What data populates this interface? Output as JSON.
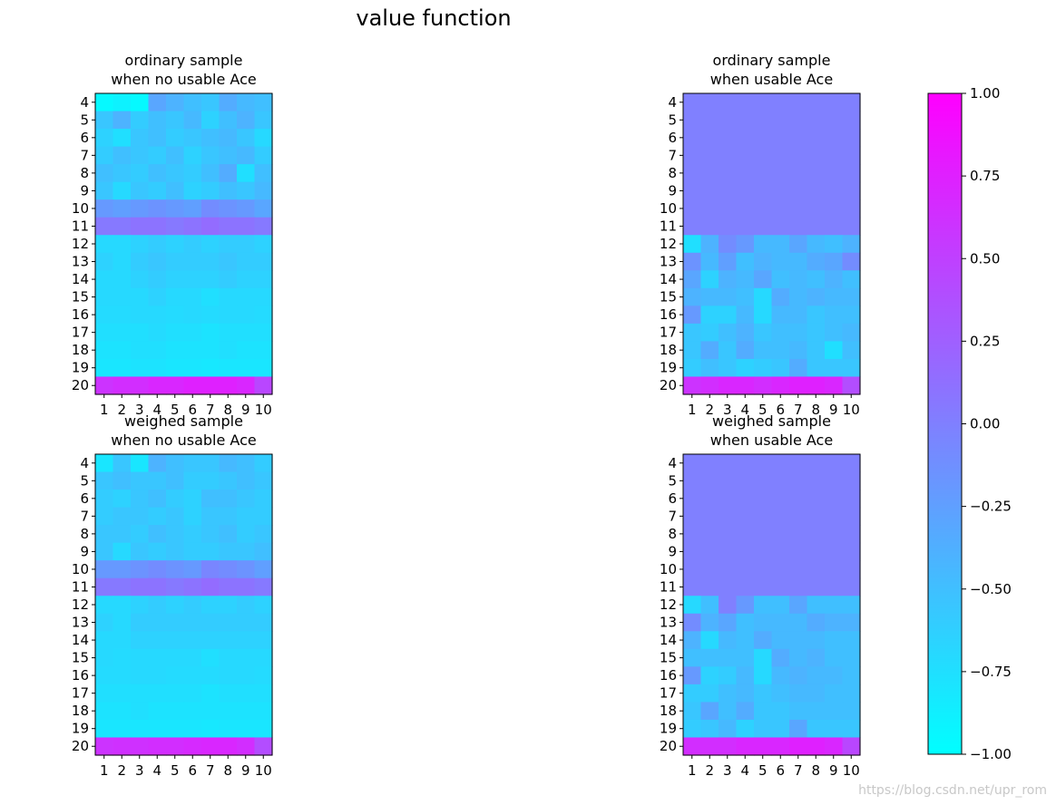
{
  "figure": {
    "suptitle": "value function",
    "watermark": "https://blog.csdn.net/upr_rom"
  },
  "chart_data": [
    {
      "type": "heatmap",
      "title": "ordinary sample\nwhen no usable Ace",
      "x": [
        1,
        2,
        3,
        4,
        5,
        6,
        7,
        8,
        9,
        10
      ],
      "y": [
        4,
        5,
        6,
        7,
        8,
        9,
        10,
        11,
        12,
        13,
        14,
        15,
        16,
        17,
        18,
        19,
        20
      ],
      "xlabel": "",
      "ylabel": "",
      "colormap": "cool",
      "vmin": -1,
      "vmax": 1,
      "z": [
        [
          -0.95,
          -0.9,
          -0.95,
          -0.3,
          -0.4,
          -0.5,
          -0.55,
          -0.35,
          -0.45,
          -0.5
        ],
        [
          -0.55,
          -0.4,
          -0.6,
          -0.5,
          -0.55,
          -0.45,
          -0.65,
          -0.5,
          -0.4,
          -0.55
        ],
        [
          -0.65,
          -0.75,
          -0.55,
          -0.5,
          -0.6,
          -0.55,
          -0.5,
          -0.45,
          -0.55,
          -0.7
        ],
        [
          -0.6,
          -0.5,
          -0.55,
          -0.6,
          -0.5,
          -0.65,
          -0.55,
          -0.5,
          -0.45,
          -0.6
        ],
        [
          -0.5,
          -0.55,
          -0.6,
          -0.5,
          -0.55,
          -0.6,
          -0.5,
          -0.35,
          -0.75,
          -0.5
        ],
        [
          -0.55,
          -0.7,
          -0.55,
          -0.6,
          -0.5,
          -0.65,
          -0.6,
          -0.5,
          -0.55,
          -0.45
        ],
        [
          -0.2,
          -0.25,
          -0.2,
          -0.15,
          -0.2,
          -0.25,
          -0.1,
          -0.15,
          -0.2,
          -0.3
        ],
        [
          0.05,
          0.05,
          0.1,
          0.1,
          0.05,
          0.1,
          0.15,
          0.1,
          0.1,
          0.05
        ],
        [
          -0.7,
          -0.7,
          -0.65,
          -0.6,
          -0.65,
          -0.6,
          -0.65,
          -0.6,
          -0.6,
          -0.65
        ],
        [
          -0.65,
          -0.7,
          -0.6,
          -0.55,
          -0.6,
          -0.6,
          -0.6,
          -0.55,
          -0.6,
          -0.6
        ],
        [
          -0.7,
          -0.7,
          -0.65,
          -0.6,
          -0.65,
          -0.65,
          -0.65,
          -0.6,
          -0.65,
          -0.65
        ],
        [
          -0.7,
          -0.7,
          -0.7,
          -0.65,
          -0.7,
          -0.7,
          -0.75,
          -0.7,
          -0.7,
          -0.7
        ],
        [
          -0.72,
          -0.72,
          -0.7,
          -0.7,
          -0.72,
          -0.7,
          -0.72,
          -0.7,
          -0.7,
          -0.72
        ],
        [
          -0.75,
          -0.75,
          -0.75,
          -0.72,
          -0.75,
          -0.75,
          -0.78,
          -0.75,
          -0.75,
          -0.75
        ],
        [
          -0.78,
          -0.78,
          -0.75,
          -0.75,
          -0.78,
          -0.78,
          -0.78,
          -0.75,
          -0.78,
          -0.78
        ],
        [
          -0.8,
          -0.8,
          -0.78,
          -0.78,
          -0.8,
          -0.8,
          -0.82,
          -0.8,
          -0.8,
          -0.8
        ],
        [
          0.6,
          0.65,
          0.65,
          0.7,
          0.7,
          0.75,
          0.75,
          0.75,
          0.7,
          0.45
        ]
      ]
    },
    {
      "type": "heatmap",
      "title": "ordinary sample\nwhen usable Ace",
      "x": [
        1,
        2,
        3,
        4,
        5,
        6,
        7,
        8,
        9,
        10
      ],
      "y": [
        4,
        5,
        6,
        7,
        8,
        9,
        10,
        11,
        12,
        13,
        14,
        15,
        16,
        17,
        18,
        19,
        20
      ],
      "xlabel": "",
      "ylabel": "",
      "colormap": "cool",
      "vmin": -1,
      "vmax": 1,
      "z": [
        [
          0,
          0,
          0,
          0,
          0,
          0,
          0,
          0,
          0,
          0
        ],
        [
          0,
          0,
          0,
          0,
          0,
          0,
          0,
          0,
          0,
          0
        ],
        [
          0,
          0,
          0,
          0,
          0,
          0,
          0,
          0,
          0,
          0
        ],
        [
          0,
          0,
          0,
          0,
          0,
          0,
          0,
          0,
          0,
          0
        ],
        [
          0,
          0,
          0,
          0,
          0,
          0,
          0,
          0,
          0,
          0
        ],
        [
          0,
          0,
          0,
          0,
          0,
          0,
          0,
          0,
          0,
          0
        ],
        [
          0,
          0,
          0,
          0,
          0,
          0,
          0,
          0,
          0,
          0
        ],
        [
          0,
          0,
          0,
          0,
          0,
          0,
          0,
          0,
          0,
          0
        ],
        [
          -0.75,
          -0.4,
          -0.1,
          -0.2,
          -0.45,
          -0.45,
          -0.3,
          -0.45,
          -0.5,
          -0.4
        ],
        [
          -0.15,
          -0.45,
          -0.25,
          -0.5,
          -0.4,
          -0.45,
          -0.45,
          -0.35,
          -0.3,
          -0.1
        ],
        [
          -0.3,
          -0.65,
          -0.4,
          -0.45,
          -0.3,
          -0.5,
          -0.45,
          -0.5,
          -0.4,
          -0.5
        ],
        [
          -0.4,
          -0.45,
          -0.45,
          -0.5,
          -0.7,
          -0.35,
          -0.45,
          -0.4,
          -0.45,
          -0.45
        ],
        [
          -0.2,
          -0.65,
          -0.65,
          -0.45,
          -0.7,
          -0.45,
          -0.45,
          -0.55,
          -0.5,
          -0.5
        ],
        [
          -0.55,
          -0.6,
          -0.5,
          -0.4,
          -0.55,
          -0.5,
          -0.5,
          -0.55,
          -0.5,
          -0.45
        ],
        [
          -0.55,
          -0.35,
          -0.55,
          -0.35,
          -0.5,
          -0.5,
          -0.45,
          -0.55,
          -0.75,
          -0.5
        ],
        [
          -0.6,
          -0.5,
          -0.55,
          -0.65,
          -0.6,
          -0.55,
          -0.35,
          -0.55,
          -0.55,
          -0.55
        ],
        [
          0.6,
          0.65,
          0.7,
          0.7,
          0.65,
          0.7,
          0.75,
          0.75,
          0.7,
          0.4
        ]
      ]
    },
    {
      "type": "heatmap",
      "title": "weighed sample\nwhen no usable Ace",
      "x": [
        1,
        2,
        3,
        4,
        5,
        6,
        7,
        8,
        9,
        10
      ],
      "y": [
        4,
        5,
        6,
        7,
        8,
        9,
        10,
        11,
        12,
        13,
        14,
        15,
        16,
        17,
        18,
        19,
        20
      ],
      "xlabel": "",
      "ylabel": "",
      "colormap": "cool",
      "vmin": -1,
      "vmax": 1,
      "z": [
        [
          -0.8,
          -0.55,
          -0.8,
          -0.4,
          -0.5,
          -0.55,
          -0.55,
          -0.45,
          -0.5,
          -0.6
        ],
        [
          -0.55,
          -0.5,
          -0.55,
          -0.55,
          -0.5,
          -0.6,
          -0.6,
          -0.55,
          -0.5,
          -0.55
        ],
        [
          -0.6,
          -0.65,
          -0.55,
          -0.5,
          -0.6,
          -0.65,
          -0.5,
          -0.5,
          -0.55,
          -0.6
        ],
        [
          -0.6,
          -0.55,
          -0.55,
          -0.6,
          -0.55,
          -0.65,
          -0.55,
          -0.55,
          -0.6,
          -0.6
        ],
        [
          -0.55,
          -0.55,
          -0.6,
          -0.5,
          -0.55,
          -0.6,
          -0.55,
          -0.5,
          -0.6,
          -0.55
        ],
        [
          -0.55,
          -0.7,
          -0.55,
          -0.6,
          -0.55,
          -0.6,
          -0.6,
          -0.55,
          -0.55,
          -0.5
        ],
        [
          -0.2,
          -0.2,
          -0.15,
          -0.1,
          -0.15,
          -0.2,
          -0.05,
          -0.1,
          -0.15,
          -0.25
        ],
        [
          0.05,
          0.05,
          0.1,
          0.1,
          0.05,
          0.1,
          0.15,
          0.1,
          0.1,
          0.05
        ],
        [
          -0.7,
          -0.7,
          -0.65,
          -0.6,
          -0.65,
          -0.6,
          -0.65,
          -0.65,
          -0.6,
          -0.65
        ],
        [
          -0.65,
          -0.7,
          -0.6,
          -0.6,
          -0.6,
          -0.6,
          -0.6,
          -0.6,
          -0.6,
          -0.6
        ],
        [
          -0.7,
          -0.7,
          -0.65,
          -0.65,
          -0.65,
          -0.65,
          -0.65,
          -0.65,
          -0.65,
          -0.65
        ],
        [
          -0.7,
          -0.72,
          -0.7,
          -0.7,
          -0.7,
          -0.7,
          -0.75,
          -0.7,
          -0.7,
          -0.7
        ],
        [
          -0.72,
          -0.72,
          -0.7,
          -0.7,
          -0.72,
          -0.72,
          -0.72,
          -0.7,
          -0.7,
          -0.72
        ],
        [
          -0.75,
          -0.75,
          -0.75,
          -0.75,
          -0.75,
          -0.75,
          -0.78,
          -0.75,
          -0.75,
          -0.75
        ],
        [
          -0.78,
          -0.78,
          -0.75,
          -0.78,
          -0.78,
          -0.78,
          -0.78,
          -0.78,
          -0.78,
          -0.78
        ],
        [
          -0.8,
          -0.8,
          -0.8,
          -0.8,
          -0.8,
          -0.8,
          -0.82,
          -0.8,
          -0.8,
          -0.8
        ],
        [
          0.6,
          0.62,
          0.62,
          0.65,
          0.65,
          0.68,
          0.7,
          0.7,
          0.65,
          0.4
        ]
      ]
    },
    {
      "type": "heatmap",
      "title": "weighed sample\nwhen usable Ace",
      "x": [
        1,
        2,
        3,
        4,
        5,
        6,
        7,
        8,
        9,
        10
      ],
      "y": [
        4,
        5,
        6,
        7,
        8,
        9,
        10,
        11,
        12,
        13,
        14,
        15,
        16,
        17,
        18,
        19,
        20
      ],
      "xlabel": "",
      "ylabel": "",
      "colormap": "cool",
      "vmin": -1,
      "vmax": 1,
      "z": [
        [
          0,
          0,
          0,
          0,
          0,
          0,
          0,
          0,
          0,
          0
        ],
        [
          0,
          0,
          0,
          0,
          0,
          0,
          0,
          0,
          0,
          0
        ],
        [
          0,
          0,
          0,
          0,
          0,
          0,
          0,
          0,
          0,
          0
        ],
        [
          0,
          0,
          0,
          0,
          0,
          0,
          0,
          0,
          0,
          0
        ],
        [
          0,
          0,
          0,
          0,
          0,
          0,
          0,
          0,
          0,
          0
        ],
        [
          0,
          0,
          0,
          0,
          0,
          0,
          0,
          0,
          0,
          0
        ],
        [
          0,
          0,
          0,
          0,
          0,
          0,
          0,
          0,
          0,
          0
        ],
        [
          0,
          0,
          0,
          0,
          0,
          0,
          0,
          0,
          0,
          0
        ],
        [
          -0.7,
          -0.5,
          0,
          -0.2,
          -0.5,
          -0.5,
          -0.3,
          -0.5,
          -0.5,
          -0.5
        ],
        [
          -0.1,
          -0.4,
          -0.3,
          -0.5,
          -0.45,
          -0.45,
          -0.45,
          -0.35,
          -0.4,
          -0.4
        ],
        [
          -0.4,
          -0.7,
          -0.45,
          -0.5,
          -0.35,
          -0.45,
          -0.45,
          -0.45,
          -0.5,
          -0.5
        ],
        [
          -0.5,
          -0.5,
          -0.5,
          -0.5,
          -0.7,
          -0.35,
          -0.45,
          -0.4,
          -0.5,
          -0.5
        ],
        [
          -0.2,
          -0.65,
          -0.6,
          -0.45,
          -0.7,
          -0.45,
          -0.4,
          -0.45,
          -0.45,
          -0.5
        ],
        [
          -0.6,
          -0.6,
          -0.5,
          -0.45,
          -0.55,
          -0.5,
          -0.45,
          -0.45,
          -0.5,
          -0.5
        ],
        [
          -0.55,
          -0.3,
          -0.5,
          -0.35,
          -0.55,
          -0.55,
          -0.5,
          -0.5,
          -0.5,
          -0.5
        ],
        [
          -0.6,
          -0.55,
          -0.45,
          -0.65,
          -0.55,
          -0.55,
          -0.3,
          -0.55,
          -0.55,
          -0.55
        ],
        [
          0.65,
          0.65,
          0.65,
          0.7,
          0.7,
          0.7,
          0.75,
          0.75,
          0.7,
          0.45
        ]
      ]
    }
  ],
  "colorbar": {
    "colormap": "cool",
    "vmin": -1,
    "vmax": 1,
    "ticks": [
      -1.0,
      -0.75,
      -0.5,
      -0.25,
      0.0,
      0.25,
      0.5,
      0.75,
      1.0
    ],
    "tick_labels": [
      "−1.00",
      "−0.75",
      "−0.50",
      "−0.25",
      "0.00",
      "0.25",
      "0.50",
      "0.75",
      "1.00"
    ]
  }
}
